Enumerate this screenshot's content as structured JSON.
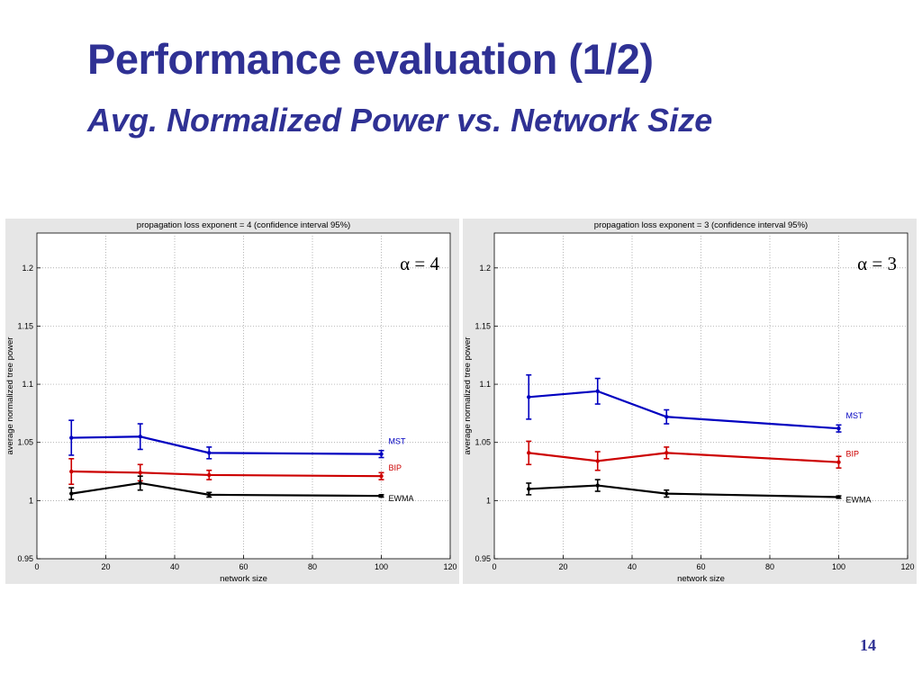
{
  "slide": {
    "title": "Performance evaluation (1/2)",
    "subtitle": "Avg. Normalized Power vs. Network Size",
    "number": "14"
  },
  "colors": {
    "title": "#2f3194",
    "mst": "#0000c0",
    "bip": "#cc0000",
    "ewma": "#000000",
    "plot_bg": "#e6e6e6"
  },
  "chart_data": [
    {
      "type": "line",
      "title": "propagation loss exponent = 4 (confidence interval 95%)",
      "annotation": "α = 4",
      "xlabel": "network size",
      "ylabel": "average normalized tree power",
      "xlim": [
        0,
        120
      ],
      "ylim": [
        0.95,
        1.23
      ],
      "xticks": [
        0,
        20,
        40,
        60,
        80,
        100,
        120
      ],
      "yticks": [
        0.95,
        1,
        1.05,
        1.1,
        1.15,
        1.2
      ],
      "grid": true,
      "x": [
        10,
        30,
        50,
        100
      ],
      "series": [
        {
          "name": "MST",
          "color": "#0000c0",
          "values": [
            1.054,
            1.055,
            1.041,
            1.04
          ],
          "err": [
            0.015,
            0.011,
            0.005,
            0.003
          ]
        },
        {
          "name": "BIP",
          "color": "#cc0000",
          "values": [
            1.025,
            1.024,
            1.022,
            1.021
          ],
          "err": [
            0.011,
            0.007,
            0.004,
            0.003
          ]
        },
        {
          "name": "EWMA",
          "color": "#000000",
          "values": [
            1.006,
            1.015,
            1.005,
            1.004
          ],
          "err": [
            0.005,
            0.006,
            0.002,
            0.001
          ]
        }
      ]
    },
    {
      "type": "line",
      "title": "propagation loss exponent = 3 (confidence interval 95%)",
      "annotation": "α = 3",
      "xlabel": "network size",
      "ylabel": "average normalized tree power",
      "xlim": [
        0,
        120
      ],
      "ylim": [
        0.95,
        1.23
      ],
      "xticks": [
        0,
        20,
        40,
        60,
        80,
        100,
        120
      ],
      "yticks": [
        0.95,
        1,
        1.05,
        1.1,
        1.15,
        1.2
      ],
      "grid": true,
      "x": [
        10,
        30,
        50,
        100
      ],
      "series": [
        {
          "name": "MST",
          "color": "#0000c0",
          "values": [
            1.089,
            1.094,
            1.072,
            1.062
          ],
          "err": [
            0.019,
            0.011,
            0.006,
            0.003
          ]
        },
        {
          "name": "BIP",
          "color": "#cc0000",
          "values": [
            1.041,
            1.034,
            1.041,
            1.033
          ],
          "err": [
            0.01,
            0.008,
            0.005,
            0.005
          ]
        },
        {
          "name": "EWMA",
          "color": "#000000",
          "values": [
            1.01,
            1.013,
            1.006,
            1.003
          ],
          "err": [
            0.005,
            0.005,
            0.003,
            0.001
          ]
        }
      ]
    }
  ]
}
